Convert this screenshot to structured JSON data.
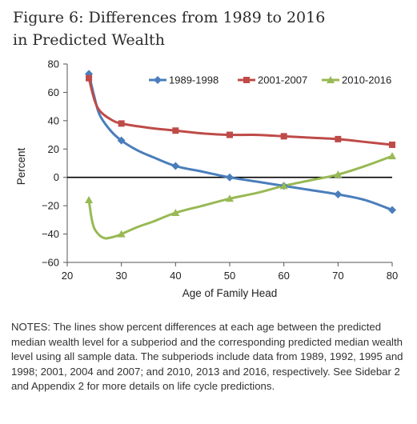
{
  "figure": {
    "title_line1": "Figure 6: Differences from 1989 to 2016",
    "title_line2": "in Predicted Wealth"
  },
  "chart_data": {
    "type": "line",
    "xlabel": "Age of Family Head",
    "ylabel": "Percent",
    "xlim": [
      20,
      80
    ],
    "ylim": [
      -60,
      80
    ],
    "xticks": [
      20,
      30,
      40,
      50,
      60,
      70,
      80
    ],
    "yticks": [
      -60,
      -40,
      -20,
      0,
      20,
      40,
      60,
      80
    ],
    "xtick_labels": [
      "20",
      "30",
      "40",
      "50",
      "60",
      "70",
      "80"
    ],
    "ytick_labels": [
      "−60",
      "−40",
      "−20",
      "0",
      "20",
      "40",
      "60",
      "80"
    ],
    "grid": false,
    "zero_line": true,
    "legend_position": "top-right",
    "series": [
      {
        "name": "1989-1998",
        "color": "#4a7ebb",
        "marker": "diamond",
        "x": [
          24,
          25,
          26,
          28,
          30,
          33,
          36,
          40,
          45,
          50,
          55,
          60,
          65,
          70,
          75,
          80
        ],
        "y": [
          73,
          57,
          44,
          33,
          26,
          19,
          14,
          8,
          4,
          0,
          -3,
          -6,
          -9,
          -12,
          -16,
          -23
        ],
        "marker_x": [
          24,
          30,
          40,
          50,
          60,
          70,
          80
        ],
        "marker_y": [
          73,
          26,
          8,
          0,
          -6,
          -12,
          -23
        ]
      },
      {
        "name": "2001-2007",
        "color": "#be4b48",
        "marker": "square",
        "x": [
          24,
          25,
          26,
          28,
          30,
          35,
          40,
          45,
          50,
          55,
          60,
          65,
          70,
          75,
          80
        ],
        "y": [
          70,
          55,
          47,
          41,
          38,
          35,
          33,
          31,
          30,
          30,
          29,
          28,
          27,
          25,
          23
        ],
        "marker_x": [
          24,
          30,
          40,
          50,
          60,
          70,
          80
        ],
        "marker_y": [
          70,
          38,
          33,
          30,
          29,
          27,
          23
        ]
      },
      {
        "name": "2010-2016",
        "color": "#98b954",
        "marker": "triangle",
        "x": [
          24,
          24.5,
          25,
          26,
          27,
          28,
          29,
          30,
          33,
          36,
          40,
          45,
          50,
          55,
          60,
          65,
          70,
          75,
          80
        ],
        "y": [
          -16,
          -29,
          -36,
          -41,
          -43,
          -42.5,
          -41.5,
          -40,
          -35,
          -31,
          -25,
          -20,
          -15,
          -11,
          -6,
          -2,
          2,
          8,
          15
        ],
        "marker_x": [
          24,
          30,
          40,
          50,
          60,
          70,
          80
        ],
        "marker_y": [
          -16,
          -40,
          -25,
          -15,
          -6,
          2,
          15
        ]
      }
    ]
  },
  "notes": {
    "text": "NOTES: The lines show percent differences at each age between the predicted median wealth level for a subperiod and the corresponding predicted median wealth level using all sample data. The subperiods include data from 1989, 1992, 1995 and 1998; 2001, 2004 and 2007; and 2010, 2013 and 2016, respectively. See Sidebar 2 and Appendix 2 for more details on life cycle predictions."
  }
}
